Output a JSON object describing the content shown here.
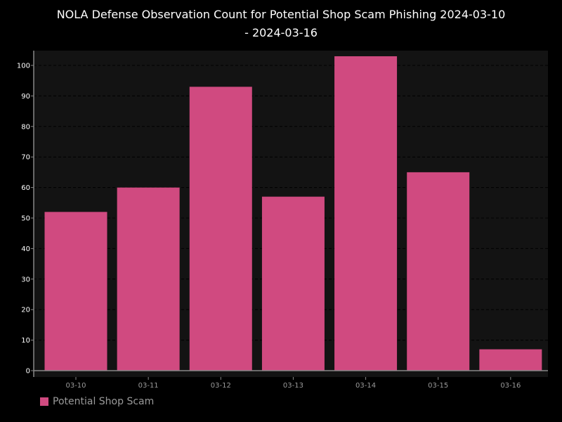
{
  "chart_data": {
    "type": "bar",
    "title_line1": "NOLA Defense Observation Count for Potential Shop Scam Phishing 2024-03-10",
    "title_line2": "- 2024-03-16",
    "categories": [
      "03-10",
      "03-11",
      "03-12",
      "03-13",
      "03-14",
      "03-15",
      "03-16"
    ],
    "series": [
      {
        "name": "Potential Shop Scam",
        "values": [
          52,
          60,
          93,
          57,
          103,
          65,
          7
        ],
        "color": "#d04a80"
      }
    ],
    "yticks": [
      0,
      10,
      20,
      30,
      40,
      50,
      60,
      70,
      80,
      90,
      100
    ],
    "ylim": [
      0,
      105
    ],
    "xlabel": "",
    "ylabel": "",
    "grid": true,
    "legend_position": "bottom-left"
  },
  "colors": {
    "background": "#000000",
    "plot_background": "#131313",
    "grid": "#000000",
    "axis": "#888888",
    "tick_label": "#9a9a9a"
  }
}
